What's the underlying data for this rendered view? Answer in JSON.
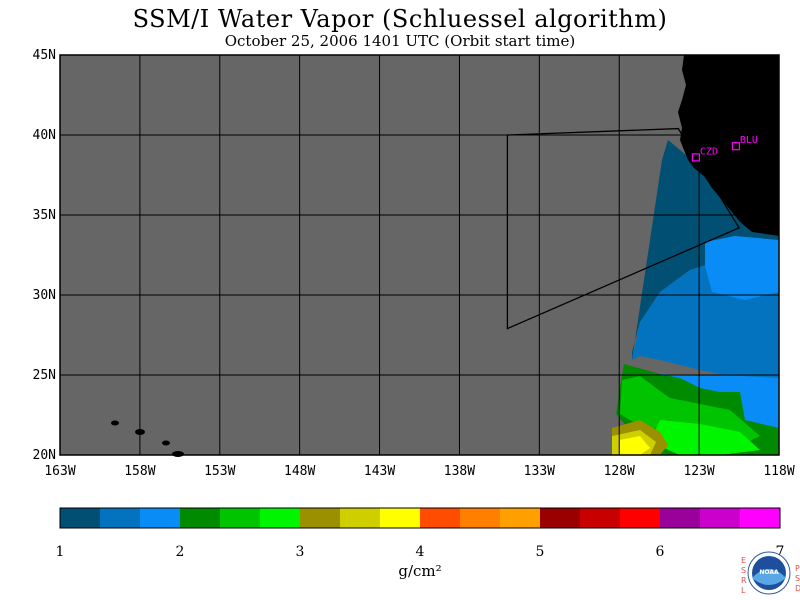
{
  "title": "SSM/I Water Vapor (Schluessel algorithm)",
  "subtitle": "October 25, 2006  1401 UTC  (Orbit start time)",
  "map": {
    "lat_labels": [
      "45N",
      "40N",
      "35N",
      "30N",
      "25N",
      "20N"
    ],
    "lon_labels": [
      "163W",
      "158W",
      "153W",
      "148W",
      "143W",
      "138W",
      "133W",
      "128W",
      "123W",
      "118W"
    ],
    "lat_range": [
      20,
      45
    ],
    "lon_range": [
      -163,
      -118
    ],
    "colors": {
      "no_data": "#666666",
      "land": "#000000",
      "grid": "#000000",
      "station": "#ff00ff"
    },
    "stations": [
      {
        "label": "CZD",
        "lat": 38.6,
        "lon": -123.2
      },
      {
        "label": "BLU",
        "lat": 39.3,
        "lon": -120.7
      }
    ],
    "track_polygon": [
      {
        "lat": 40.0,
        "lon": -135.0
      },
      {
        "lat": 40.4,
        "lon": -124.3
      },
      {
        "lat": 34.2,
        "lon": -120.5
      },
      {
        "lat": 27.9,
        "lon": -135.0
      }
    ]
  },
  "colorbar": {
    "tick_labels": [
      "1",
      "2",
      "3",
      "4",
      "5",
      "6",
      "7"
    ],
    "unit": "g/cm²",
    "bins": [
      "#014f73",
      "#0373bf",
      "#0a8cf6",
      "#008a00",
      "#00c400",
      "#00f600",
      "#9a9000",
      "#cfcf00",
      "#ffff00",
      "#ff4c00",
      "#ff7f00",
      "#ffa000",
      "#9a0000",
      "#c80000",
      "#ff0000",
      "#9a009a",
      "#cc00cc",
      "#ff00ff"
    ]
  },
  "logo": {
    "left_letters": "ESRL",
    "right_letters": "PSD",
    "center_text": "NOAA"
  }
}
